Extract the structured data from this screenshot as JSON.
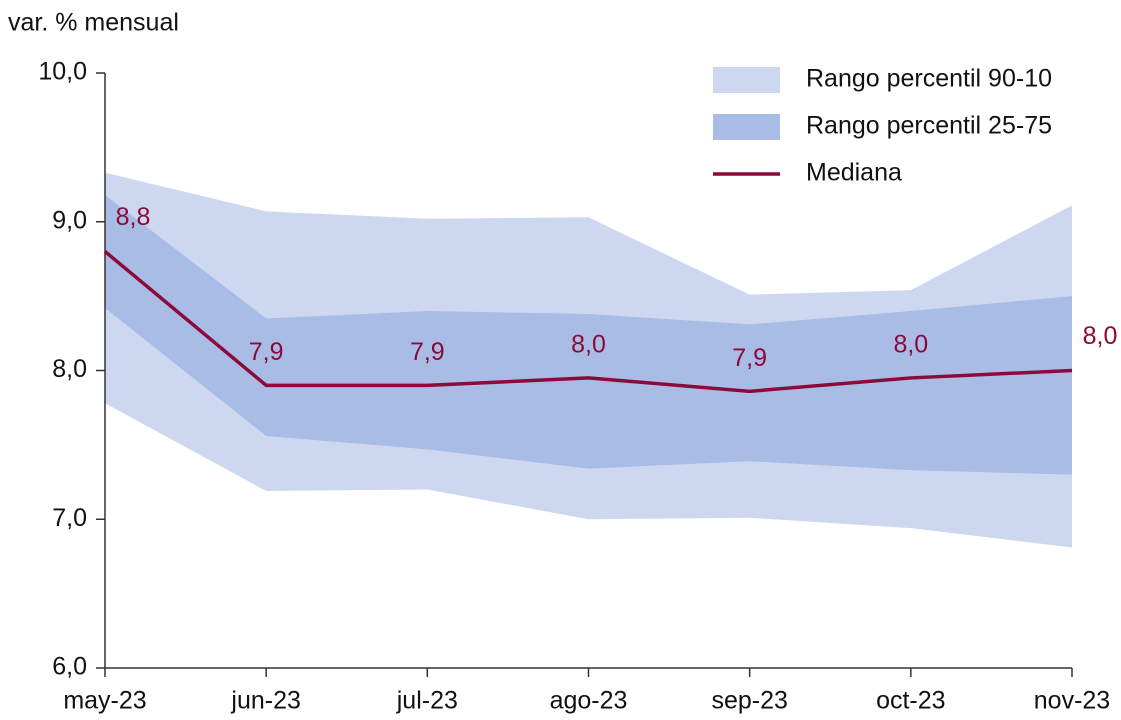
{
  "chart_data": {
    "type": "line",
    "y_axis_label": "var. % mensual",
    "categories": [
      "may-23",
      "jun-23",
      "jul-23",
      "ago-23",
      "sep-23",
      "oct-23",
      "nov-23"
    ],
    "ylim": [
      6,
      10
    ],
    "yticks": [
      {
        "value": 6,
        "label": "6,0"
      },
      {
        "value": 7,
        "label": "7,0"
      },
      {
        "value": 8,
        "label": "8,0"
      },
      {
        "value": 9,
        "label": "9,0"
      },
      {
        "value": 10,
        "label": "10,0"
      }
    ],
    "legend": "top-right",
    "bands": [
      {
        "name": "Rango percentil 90-10",
        "color": "#cdd8f0",
        "upper": [
          9.33,
          9.07,
          9.02,
          9.03,
          8.51,
          8.54,
          9.11
        ],
        "lower": [
          7.78,
          7.19,
          7.2,
          7.0,
          7.01,
          6.94,
          6.81
        ]
      },
      {
        "name": "Rango percentil 25-75",
        "color": "#a9bce6",
        "upper": [
          9.18,
          8.35,
          8.4,
          8.38,
          8.31,
          8.4,
          8.5
        ],
        "lower": [
          8.42,
          7.56,
          7.47,
          7.34,
          7.39,
          7.33,
          7.3
        ]
      }
    ],
    "series": [
      {
        "name": "Mediana",
        "color": "#8b0a3a",
        "values": [
          8.8,
          7.9,
          7.9,
          7.95,
          7.86,
          7.95,
          8.0
        ],
        "value_labels": [
          "8,8",
          "7,9",
          "7,9",
          "8,0",
          "7,9",
          "8,0",
          "8,0"
        ]
      }
    ]
  }
}
